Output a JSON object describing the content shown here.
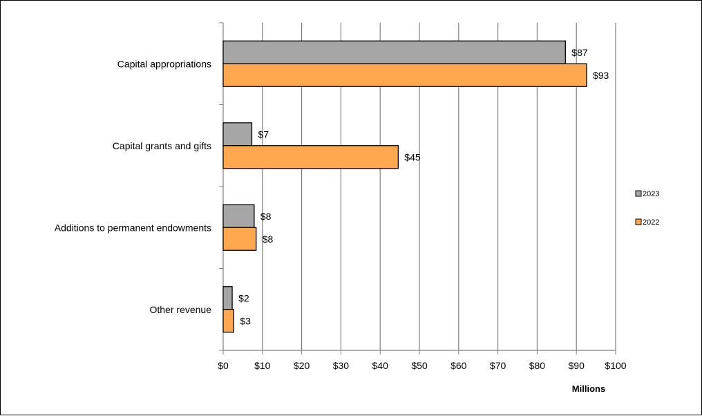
{
  "chart_data": {
    "type": "bar",
    "orientation": "horizontal",
    "categories": [
      "Capital appropriations",
      "Capital grants and gifts",
      "Additions to permanent endowments",
      "Other revenue"
    ],
    "series": [
      {
        "name": "2023",
        "values": [
          87.2,
          7.3,
          7.9,
          2.3
        ],
        "labels": [
          "$87",
          "$7",
          "$8",
          "$2"
        ],
        "color": "#a6a6a6"
      },
      {
        "name": "2022",
        "values": [
          92.6,
          44.6,
          8.4,
          2.7
        ],
        "labels": [
          "$93",
          "$45",
          "$8",
          "$3"
        ],
        "color": "#ffa84f"
      }
    ],
    "xlim": [
      0,
      100
    ],
    "xticks": [
      0,
      10,
      20,
      30,
      40,
      50,
      60,
      70,
      80,
      90,
      100
    ],
    "xtick_labels": [
      "$0",
      "$10",
      "$20",
      "$30",
      "$40",
      "$50",
      "$60",
      "$70",
      "$80",
      "$90",
      "$100"
    ],
    "xlabel": "Millions",
    "grid": "vertical",
    "legend_position": "right"
  }
}
